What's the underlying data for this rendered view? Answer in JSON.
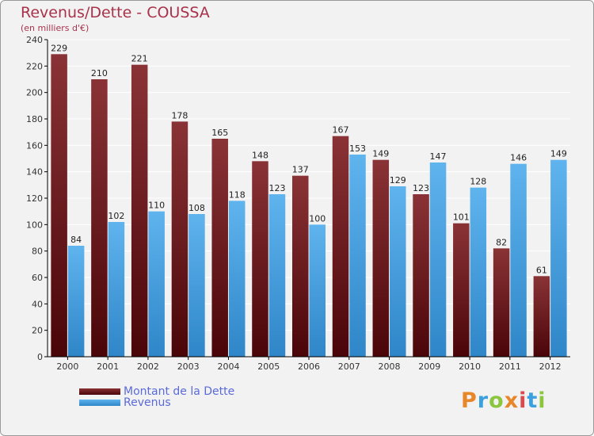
{
  "title": "Revenus/Dette - COUSSA",
  "subtitle": "(en milliers d'€)",
  "logo": {
    "text": "Proxiti",
    "colors": [
      "#e8862a",
      "#3aa0e0",
      "#8cc63f",
      "#e8862a",
      "#d94b4b",
      "#3aa0e0",
      "#8cc63f"
    ]
  },
  "colors": {
    "debt_top": "#8a3336",
    "debt_bottom": "#4a0508",
    "revenue_top": "#5fb4ee",
    "revenue_bottom": "#2f86c8",
    "background": "#f2f2f2",
    "axis": "#000000",
    "grid": "#ffffff"
  },
  "chart_data": {
    "type": "bar",
    "categories": [
      "2000",
      "2001",
      "2002",
      "2003",
      "2004",
      "2005",
      "2006",
      "2007",
      "2008",
      "2009",
      "2010",
      "2011",
      "2012"
    ],
    "series": [
      {
        "name": "Montant de la Dette",
        "values": [
          229,
          210,
          221,
          178,
          165,
          148,
          137,
          167,
          149,
          123,
          101,
          82,
          61
        ]
      },
      {
        "name": "Revenus",
        "values": [
          84,
          102,
          110,
          108,
          118,
          123,
          100,
          153,
          129,
          147,
          128,
          146,
          149
        ]
      }
    ],
    "y_ticks": [
      "0",
      "20",
      "40",
      "60",
      "80",
      "100",
      "120",
      "140",
      "160",
      "180",
      "200",
      "220",
      "240"
    ],
    "ylim": [
      0,
      240
    ],
    "grid": true,
    "legend_position": "bottom-left"
  }
}
